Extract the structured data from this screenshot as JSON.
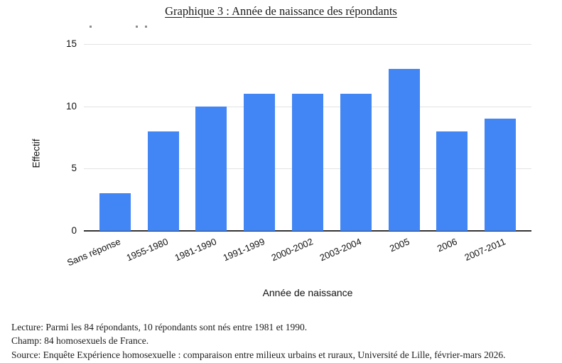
{
  "title": "Graphique 3 : Année de naissance des répondants",
  "chart_data": {
    "type": "bar",
    "title": "Graphique 3 : Année de naissance des répondants",
    "categories": [
      "Sans réponse",
      "1955-1980",
      "1981-1990",
      "1991-1999",
      "2000-2002",
      "2003-2004",
      "2005",
      "2006",
      "2007-2011"
    ],
    "values": [
      3,
      8,
      10,
      11,
      11,
      11,
      13,
      8,
      9
    ],
    "xlabel": "Année de naissance",
    "ylabel": "Effectif",
    "ylim": [
      0,
      15
    ],
    "yticks": [
      0,
      5,
      10,
      15
    ],
    "grid": true,
    "legend": "none",
    "bar_color": "#4285f4",
    "grid_color": "#e3e3e3",
    "axis_color": "#333333"
  },
  "notes": {
    "lecture": "Lecture: Parmi les 84 répondants, 10 répondants sont nés entre 1981 et 1990.",
    "champ": "Champ: 84 homosexuels de France.",
    "source": "Source: Enquête Expérience homosexuelle : comparaison entre milieux urbains et ruraux, Université de Lille, février-mars 2026."
  }
}
